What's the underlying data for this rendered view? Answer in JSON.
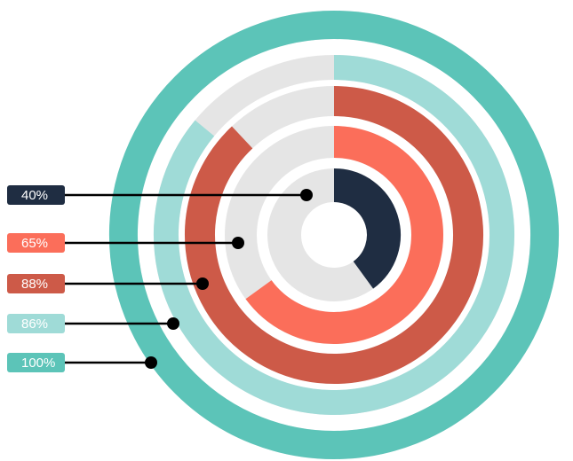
{
  "chart_data": {
    "type": "radial-bar",
    "title": "",
    "rings": [
      {
        "label": "100%",
        "value": 100,
        "color": "#5CC4B8"
      },
      {
        "label": "86%",
        "value": 86,
        "color": "#9FDBD7"
      },
      {
        "label": "88%",
        "value": 88,
        "color": "#CD5A48"
      },
      {
        "label": "65%",
        "value": 65,
        "color": "#FB6E5A"
      },
      {
        "label": "40%",
        "value": 40,
        "color": "#1F2D42"
      }
    ],
    "track_color": "#E5E5E5",
    "connector_color": "#000000",
    "start_angle": "top",
    "direction": "clockwise",
    "max": 100
  }
}
